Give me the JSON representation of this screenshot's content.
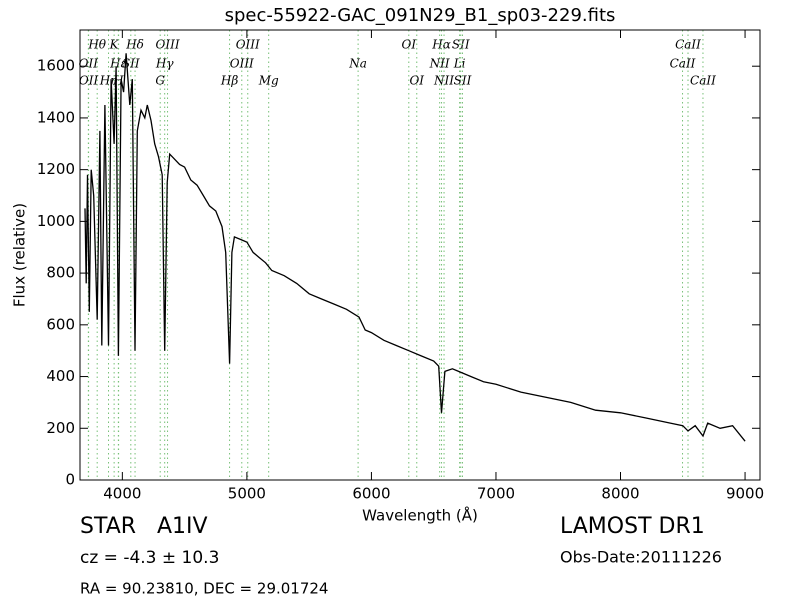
{
  "chart_data": {
    "type": "line",
    "title": "spec-55922-GAC_091N29_B1_sp03-229.fits",
    "x_label": "Wavelength (Å)",
    "y_label": "Flux (relative)",
    "xlim": [
      3660,
      9120
    ],
    "ylim": [
      0,
      1740
    ],
    "xticks": [
      4000,
      5000,
      6000,
      7000,
      8000,
      9000
    ],
    "yticks": [
      0,
      200,
      400,
      600,
      800,
      1000,
      1200,
      1400,
      1600
    ],
    "series": [
      {
        "color": "#000000",
        "x": [
          3700,
          3710,
          3720,
          3735,
          3750,
          3770,
          3798,
          3820,
          3835,
          3860,
          3889,
          3910,
          3934,
          3950,
          3968,
          3990,
          4010,
          4030,
          4060,
          4080,
          4102,
          4120,
          4150,
          4180,
          4200,
          4230,
          4260,
          4290,
          4320,
          4340,
          4360,
          4380,
          4420,
          4460,
          4500,
          4550,
          4600,
          4650,
          4700,
          4750,
          4800,
          4830,
          4861,
          4880,
          4900,
          4950,
          5000,
          5050,
          5100,
          5150,
          5200,
          5300,
          5400,
          5500,
          5600,
          5700,
          5800,
          5900,
          5950,
          6000,
          6100,
          6200,
          6300,
          6400,
          6500,
          6540,
          6563,
          6590,
          6650,
          6700,
          6800,
          6900,
          7000,
          7200,
          7400,
          7600,
          7800,
          8000,
          8200,
          8400,
          8500,
          8542,
          8600,
          8662,
          8700,
          8800,
          8900,
          9000
        ],
        "values": [
          1050,
          760,
          1180,
          650,
          1200,
          1100,
          620,
          1350,
          520,
          1450,
          520,
          1550,
          1300,
          1600,
          480,
          1550,
          1500,
          1650,
          1450,
          1550,
          500,
          1350,
          1430,
          1400,
          1450,
          1390,
          1300,
          1250,
          1180,
          500,
          1150,
          1260,
          1240,
          1220,
          1210,
          1160,
          1140,
          1100,
          1060,
          1040,
          980,
          880,
          450,
          880,
          940,
          930,
          920,
          880,
          860,
          840,
          810,
          790,
          760,
          720,
          700,
          680,
          660,
          630,
          580,
          570,
          540,
          520,
          500,
          480,
          460,
          440,
          260,
          420,
          430,
          420,
          400,
          380,
          370,
          340,
          320,
          300,
          270,
          260,
          240,
          220,
          210,
          190,
          210,
          170,
          220,
          200,
          210,
          150
        ]
      }
    ],
    "spectral_lines_color": "#77c077",
    "spectral_lines": {
      "top": [
        {
          "wavelength": 3798,
          "label": "Hθ"
        },
        {
          "wavelength": 3934,
          "label": "K"
        },
        {
          "wavelength": 4102,
          "label": "Hδ"
        },
        {
          "wavelength": 4363,
          "label": "OIII"
        },
        {
          "wavelength": 5007,
          "label": "OIII"
        },
        {
          "wavelength": 6300,
          "label": "OI"
        },
        {
          "wavelength": 6563,
          "label": "Hα"
        },
        {
          "wavelength": 6717,
          "label": "SII"
        },
        {
          "wavelength": 8542,
          "label": "CaII"
        }
      ],
      "middle": [
        {
          "wavelength": 3727,
          "label": "OII"
        },
        {
          "wavelength": 3970,
          "label": "Hε"
        },
        {
          "wavelength": 4068,
          "label": "SII"
        },
        {
          "wavelength": 4340,
          "label": "Hγ"
        },
        {
          "wavelength": 4959,
          "label": "OIII"
        },
        {
          "wavelength": 5893,
          "label": "Na"
        },
        {
          "wavelength": 6548,
          "label": "NII"
        },
        {
          "wavelength": 6708,
          "label": "Li"
        },
        {
          "wavelength": 8498,
          "label": "CaII"
        }
      ],
      "bottom": [
        {
          "wavelength": 3729,
          "label": "OII"
        },
        {
          "wavelength": 3889,
          "label": "Hη"
        },
        {
          "wavelength": 3968,
          "label": "H"
        },
        {
          "wavelength": 4304,
          "label": "G"
        },
        {
          "wavelength": 4861,
          "label": "Hβ"
        },
        {
          "wavelength": 5175,
          "label": "Mg"
        },
        {
          "wavelength": 6364,
          "label": "OI"
        },
        {
          "wavelength": 6583,
          "label": "NII"
        },
        {
          "wavelength": 6731,
          "label": "SII"
        },
        {
          "wavelength": 8662,
          "label": "CaII"
        }
      ]
    }
  },
  "info": {
    "class": "STAR   A1IV",
    "cz": "cz = -4.3 ± 10.3",
    "coords": "RA = 90.23810, DEC = 29.01724",
    "survey": "LAMOST DR1",
    "obs_date": "Obs-Date:20111226"
  }
}
